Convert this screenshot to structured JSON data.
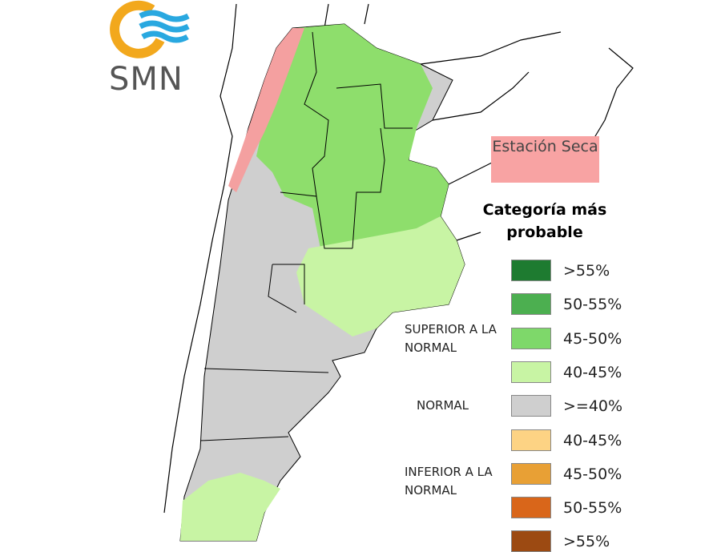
{
  "logo": {
    "text": "SMN"
  },
  "annotation": {
    "text": "Estación Seca",
    "color": "#f8a3a3"
  },
  "legend": {
    "title": "Categoría más probable",
    "groups": [
      {
        "label": "SUPERIOR A LA NORMAL"
      },
      {
        "label": "NORMAL"
      },
      {
        "label": "INFERIOR A LA NORMAL"
      }
    ],
    "items": [
      {
        "label": ">55%",
        "color": "#1e7b30"
      },
      {
        "label": "50-55%",
        "color": "#4caf50"
      },
      {
        "label": "45-50%",
        "color": "#7ed86a"
      },
      {
        "label": "40-45%",
        "color": "#c8f4a4"
      },
      {
        "label": ">=40%",
        "color": "#cfcfcf"
      },
      {
        "label": "40-45%",
        "color": "#fdd384"
      },
      {
        "label": "45-50%",
        "color": "#e8a035"
      },
      {
        "label": "50-55%",
        "color": "#d9661a"
      },
      {
        "label": ">55%",
        "color": "#9c4a12"
      }
    ]
  }
}
